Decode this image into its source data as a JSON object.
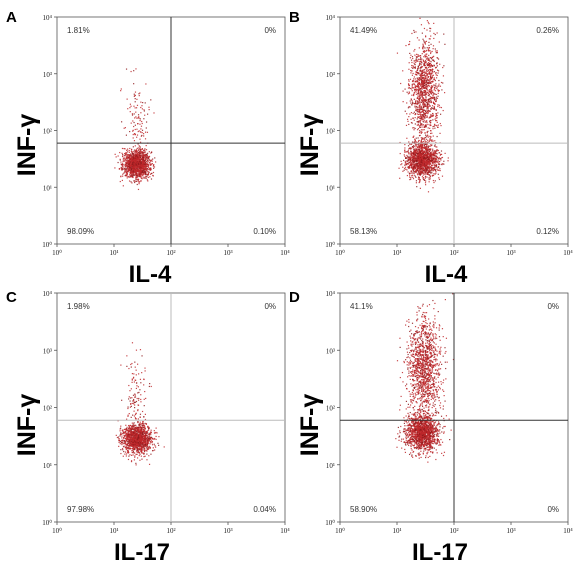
{
  "chart_data": [
    {
      "type": "scatter",
      "panel": "A",
      "xlabel": "IL-4",
      "ylabel": "INF-γ",
      "xscale": "log",
      "yscale": "log",
      "xlim": [
        1,
        10000
      ],
      "ylim": [
        1,
        10000
      ],
      "x_ticks": [
        "10⁰",
        "10¹",
        "10²",
        "10³",
        "10⁴"
      ],
      "y_ticks": [
        "10⁰",
        "10¹",
        "10²",
        "10³",
        "10⁴"
      ],
      "gate": {
        "x": 100,
        "y": 60,
        "line_color": "#333333"
      },
      "quadrants": {
        "upper_left": "1.81%",
        "upper_right": "0%",
        "lower_left": "98.09%",
        "lower_right": "0.10%"
      },
      "populations": [
        {
          "center": [
            25,
            25
          ],
          "spread": [
            0.12,
            0.13
          ],
          "count": 1300
        },
        {
          "center": [
            25,
            180
          ],
          "spread": [
            0.1,
            0.35
          ],
          "count": 110
        }
      ],
      "point_color": "#c0282b"
    },
    {
      "type": "scatter",
      "panel": "B",
      "xlabel": "IL-4",
      "ylabel": "INF-γ",
      "xscale": "log",
      "yscale": "log",
      "xlim": [
        1,
        10000
      ],
      "ylim": [
        1,
        10000
      ],
      "x_ticks": [
        "10⁰",
        "10¹",
        "10²",
        "10³",
        "10⁴"
      ],
      "y_ticks": [
        "10⁰",
        "10¹",
        "10²",
        "10³",
        "10⁴"
      ],
      "gate": {
        "x": 100,
        "y": 60,
        "line_color": "#bbbbbb"
      },
      "quadrants": {
        "upper_left": "41.49%",
        "upper_right": "0.26%",
        "lower_left": "58.13%",
        "lower_right": "0.12%"
      },
      "populations": [
        {
          "center": [
            28,
            30
          ],
          "spread": [
            0.14,
            0.16
          ],
          "count": 1400
        },
        {
          "center": [
            30,
            500
          ],
          "spread": [
            0.13,
            0.45
          ],
          "count": 1200
        }
      ],
      "point_color": "#c0282b"
    },
    {
      "type": "scatter",
      "panel": "C",
      "xlabel": "IL-17",
      "ylabel": "INF-γ",
      "xscale": "log",
      "yscale": "log",
      "xlim": [
        1,
        10000
      ],
      "ylim": [
        1,
        10000
      ],
      "x_ticks": [
        "10⁰",
        "10¹",
        "10²",
        "10³",
        "10⁴"
      ],
      "y_ticks": [
        "10⁰",
        "10¹",
        "10²",
        "10³",
        "10⁴"
      ],
      "gate": {
        "x": 100,
        "y": 60,
        "line_color": "#bbbbbb"
      },
      "quadrants": {
        "upper_left": "1.98%",
        "upper_right": "0%",
        "lower_left": "97.98%",
        "lower_right": "0.04%"
      },
      "populations": [
        {
          "center": [
            25,
            28
          ],
          "spread": [
            0.13,
            0.13
          ],
          "count": 1300
        },
        {
          "center": [
            25,
            180
          ],
          "spread": [
            0.1,
            0.35
          ],
          "count": 110
        }
      ],
      "point_color": "#c0282b"
    },
    {
      "type": "scatter",
      "panel": "D",
      "xlabel": "IL-17",
      "ylabel": "INF-γ",
      "xscale": "log",
      "yscale": "log",
      "xlim": [
        1,
        10000
      ],
      "ylim": [
        1,
        10000
      ],
      "x_ticks": [
        "10⁰",
        "10¹",
        "10²",
        "10³",
        "10⁴"
      ],
      "y_ticks": [
        "10⁰",
        "10¹",
        "10²",
        "10³",
        "10⁴"
      ],
      "gate": {
        "x": 100,
        "y": 60,
        "line_color": "#333333"
      },
      "quadrants": {
        "upper_left": "41.1%",
        "upper_right": "0%",
        "lower_left": "58.90%",
        "lower_right": "0%"
      },
      "populations": [
        {
          "center": [
            28,
            35
          ],
          "spread": [
            0.15,
            0.16
          ],
          "count": 1400
        },
        {
          "center": [
            30,
            500
          ],
          "spread": [
            0.15,
            0.45
          ],
          "count": 1200
        }
      ],
      "point_color": "#c0282b"
    }
  ]
}
